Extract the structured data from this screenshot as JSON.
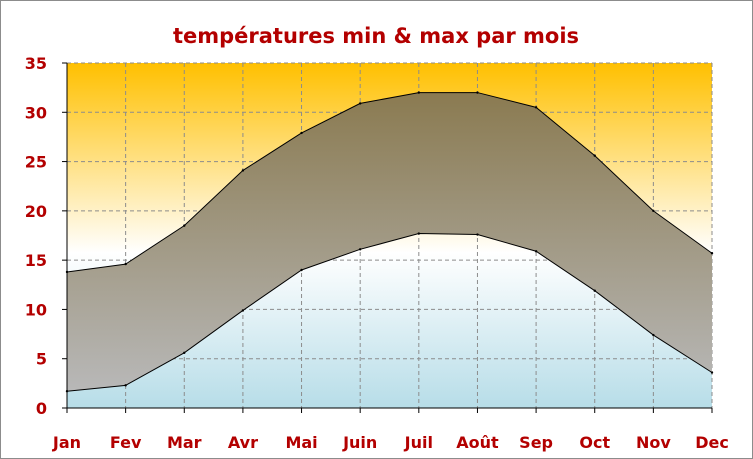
{
  "chart_data": {
    "type": "area",
    "title": "températures min & max par mois",
    "xlabel": "",
    "ylabel": "",
    "categories": [
      "Jan",
      "Fev",
      "Mar",
      "Avr",
      "Mai",
      "Juin",
      "Juil",
      "Août",
      "Sep",
      "Oct",
      "Nov",
      "Dec"
    ],
    "series": [
      {
        "values": [
          13.8,
          14.6,
          18.5,
          24.1,
          27.9,
          30.9,
          32.0,
          32.0,
          30.5,
          25.6,
          20.0,
          15.7
        ]
      },
      {
        "values": [
          1.7,
          2.3,
          5.6,
          9.9,
          14.0,
          16.1,
          17.7,
          17.6,
          15.9,
          11.9,
          7.4,
          3.6
        ]
      }
    ],
    "ylim": [
      0,
      35
    ],
    "yticks": [
      0,
      5,
      10,
      15,
      20,
      25,
      30,
      35
    ],
    "grid": true,
    "legend": "none",
    "colors": {
      "title": "#b30000",
      "labels": "#b30000",
      "band_top": "#8a7a50",
      "band_bottom": "#b8b8b8",
      "bg_top": "#ffc000",
      "bg_mid": "#ffffff",
      "bg_bottom": "#b7dde8",
      "grid": "#8c8c8c",
      "line": "#000000"
    }
  }
}
